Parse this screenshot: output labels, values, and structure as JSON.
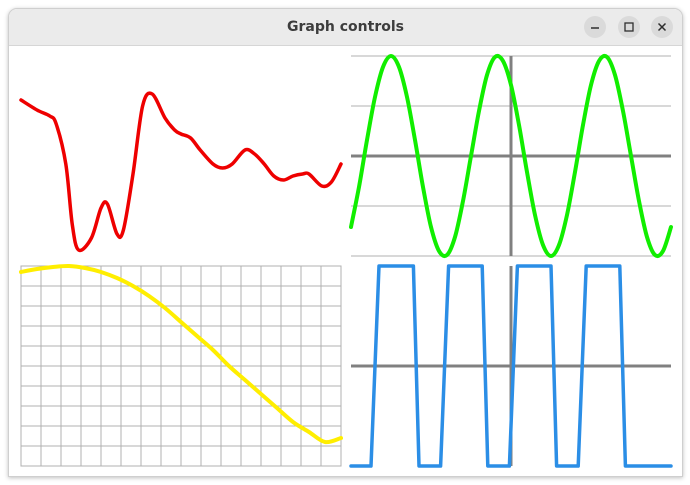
{
  "window": {
    "title": "Graph controls"
  },
  "titlebar_buttons": [
    {
      "name": "minimize",
      "icon": "minimize-icon"
    },
    {
      "name": "maximize",
      "icon": "maximize-icon"
    },
    {
      "name": "close",
      "icon": "close-icon"
    }
  ],
  "chart_data": [
    {
      "type": "line",
      "colors": {
        "line": "#ee0000"
      },
      "grid": false,
      "axes": false,
      "xlim": [
        0,
        1
      ],
      "ylim": [
        0,
        1
      ],
      "series": [
        {
          "x": [
            0.0,
            0.05,
            0.09,
            0.11,
            0.14,
            0.16,
            0.18,
            0.22,
            0.25,
            0.27,
            0.3,
            0.32,
            0.35,
            0.38,
            0.41,
            0.45,
            0.48,
            0.5,
            0.53,
            0.56,
            0.6,
            0.63,
            0.66,
            0.7,
            0.73,
            0.76,
            0.79,
            0.82,
            0.85,
            0.88,
            0.9,
            0.94,
            0.97,
            1.0
          ],
          "y": [
            0.87,
            0.82,
            0.79,
            0.75,
            0.55,
            0.25,
            0.12,
            0.18,
            0.33,
            0.35,
            0.2,
            0.22,
            0.5,
            0.84,
            0.9,
            0.78,
            0.72,
            0.7,
            0.68,
            0.62,
            0.55,
            0.53,
            0.55,
            0.62,
            0.6,
            0.55,
            0.49,
            0.47,
            0.49,
            0.5,
            0.5,
            0.44,
            0.46,
            0.55
          ]
        }
      ]
    },
    {
      "type": "line",
      "colors": {
        "line": "#11ee00",
        "axis": "#808080",
        "grid": "#b0b0b0"
      },
      "grid": true,
      "axes": true,
      "xlim": [
        -2,
        2
      ],
      "ylim": [
        -1,
        1
      ],
      "series": [
        {
          "x": [
            -2.0,
            -1.9,
            -1.8,
            -1.7,
            -1.6,
            -1.5,
            -1.4,
            -1.3,
            -1.2,
            -1.1,
            -1.0,
            -0.9,
            -0.8,
            -0.7,
            -0.6,
            -0.5,
            -0.4,
            -0.3,
            -0.2,
            -0.1,
            0.0,
            0.1,
            0.2,
            0.3,
            0.4,
            0.5,
            0.6,
            0.7,
            0.8,
            0.9,
            1.0,
            1.1,
            1.2,
            1.3,
            1.4,
            1.5,
            1.6,
            1.7,
            1.8,
            1.9,
            2.0
          ],
          "y": [
            -0.71,
            -0.31,
            0.16,
            0.59,
            0.89,
            1.0,
            0.89,
            0.59,
            0.16,
            -0.31,
            -0.71,
            -0.95,
            -0.99,
            -0.81,
            -0.45,
            0.0,
            0.45,
            0.81,
            0.99,
            0.95,
            0.71,
            0.31,
            -0.16,
            -0.59,
            -0.89,
            -1.0,
            -0.89,
            -0.59,
            -0.16,
            0.31,
            0.71,
            0.95,
            0.99,
            0.81,
            0.45,
            0.0,
            -0.45,
            -0.81,
            -0.99,
            -0.95,
            -0.71
          ]
        }
      ]
    },
    {
      "type": "line",
      "colors": {
        "line": "#ffee00",
        "grid": "#b0b0b0"
      },
      "grid": true,
      "axes": false,
      "xlim": [
        0,
        1
      ],
      "ylim": [
        0,
        1
      ],
      "series": [
        {
          "x": [
            0.0,
            0.05,
            0.1,
            0.15,
            0.2,
            0.25,
            0.3,
            0.35,
            0.4,
            0.45,
            0.5,
            0.55,
            0.6,
            0.65,
            0.7,
            0.75,
            0.8,
            0.85,
            0.9,
            0.95,
            1.0
          ],
          "y": [
            0.97,
            0.985,
            0.995,
            1.0,
            0.99,
            0.97,
            0.94,
            0.9,
            0.85,
            0.79,
            0.72,
            0.65,
            0.58,
            0.5,
            0.43,
            0.36,
            0.29,
            0.22,
            0.17,
            0.12,
            0.14
          ]
        }
      ]
    },
    {
      "type": "line",
      "colors": {
        "line": "#2b8ee6",
        "axis": "#808080"
      },
      "grid": false,
      "axes": true,
      "xlim": [
        -2,
        2
      ],
      "ylim": [
        -1,
        1
      ],
      "series": [
        {
          "x": [
            -2.0,
            -1.75,
            -1.65,
            -1.58,
            -1.22,
            -1.15,
            -1.05,
            -0.88,
            -0.78,
            -0.72,
            -0.36,
            -0.29,
            -0.19,
            -0.02,
            0.08,
            0.15,
            0.5,
            0.57,
            0.67,
            0.84,
            0.94,
            1.01,
            1.36,
            1.43,
            1.53,
            1.69,
            1.8,
            1.87,
            2.0
          ],
          "y": [
            -1,
            -1,
            1,
            1,
            1,
            -1,
            -1,
            -1,
            1,
            1,
            1,
            -1,
            -1,
            -1,
            1,
            1,
            1,
            -1,
            -1,
            -1,
            1,
            1,
            1,
            -1,
            -1,
            -1,
            -1,
            -1,
            -1
          ]
        }
      ]
    }
  ]
}
